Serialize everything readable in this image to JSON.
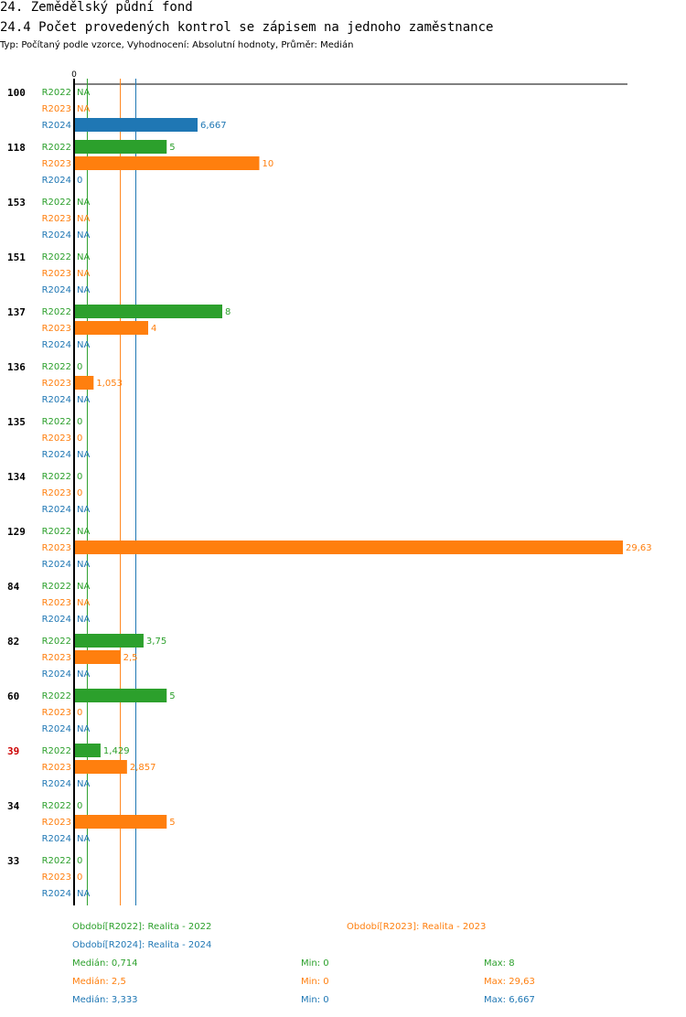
{
  "header": {
    "title": "24. Zemědělský půdní fond",
    "subtitle": "24.4 Počet provedených kontrol se zápisem na jednoho zaměstnance",
    "info": "Typ: Počítaný podle vzorce, Vyhodnocení: Absolutní hodnoty, Průměr: Medián"
  },
  "colors": {
    "R2022": "#2ca02c",
    "R2023": "#ff7f0e",
    "R2024": "#1f77b4",
    "highlight": "#cc0000"
  },
  "chart_data": {
    "type": "bar",
    "orientation": "horizontal",
    "x_tick_label": "0",
    "xlim": [
      0,
      29.63
    ],
    "na_label": "NA",
    "series": [
      {
        "name": "R2022",
        "key": "R2022"
      },
      {
        "name": "R2023",
        "key": "R2023"
      },
      {
        "name": "R2024",
        "key": "R2024"
      }
    ],
    "groups": [
      {
        "label": "100",
        "highlight": false,
        "values": {
          "R2022": null,
          "R2023": null,
          "R2024": 6.667
        },
        "value_labels": {
          "R2024": "6,667"
        }
      },
      {
        "label": "118",
        "highlight": false,
        "values": {
          "R2022": 5,
          "R2023": 10,
          "R2024": 0
        },
        "value_labels": {
          "R2022": "5",
          "R2023": "10",
          "R2024": "0"
        }
      },
      {
        "label": "153",
        "highlight": false,
        "values": {
          "R2022": null,
          "R2023": null,
          "R2024": null
        },
        "value_labels": {}
      },
      {
        "label": "151",
        "highlight": false,
        "values": {
          "R2022": null,
          "R2023": null,
          "R2024": null
        },
        "value_labels": {}
      },
      {
        "label": "137",
        "highlight": false,
        "values": {
          "R2022": 8,
          "R2023": 4,
          "R2024": null
        },
        "value_labels": {
          "R2022": "8",
          "R2023": "4"
        }
      },
      {
        "label": "136",
        "highlight": false,
        "values": {
          "R2022": 0,
          "R2023": 1.053,
          "R2024": null
        },
        "value_labels": {
          "R2022": "0",
          "R2023": "1,053"
        }
      },
      {
        "label": "135",
        "highlight": false,
        "values": {
          "R2022": 0,
          "R2023": 0,
          "R2024": null
        },
        "value_labels": {
          "R2022": "0",
          "R2023": "0"
        }
      },
      {
        "label": "134",
        "highlight": false,
        "values": {
          "R2022": 0,
          "R2023": 0,
          "R2024": null
        },
        "value_labels": {
          "R2022": "0",
          "R2023": "0"
        }
      },
      {
        "label": "129",
        "highlight": false,
        "values": {
          "R2022": null,
          "R2023": 29.63,
          "R2024": null
        },
        "value_labels": {
          "R2023": "29,63"
        }
      },
      {
        "label": "84",
        "highlight": false,
        "values": {
          "R2022": null,
          "R2023": null,
          "R2024": null
        },
        "value_labels": {}
      },
      {
        "label": "82",
        "highlight": false,
        "values": {
          "R2022": 3.75,
          "R2023": 2.5,
          "R2024": null
        },
        "value_labels": {
          "R2022": "3,75",
          "R2023": "2,5"
        }
      },
      {
        "label": "60",
        "highlight": false,
        "values": {
          "R2022": 5,
          "R2023": 0,
          "R2024": null
        },
        "value_labels": {
          "R2022": "5",
          "R2023": "0"
        }
      },
      {
        "label": "39",
        "highlight": true,
        "values": {
          "R2022": 1.429,
          "R2023": 2.857,
          "R2024": null
        },
        "value_labels": {
          "R2022": "1,429",
          "R2023": "2,857"
        }
      },
      {
        "label": "34",
        "highlight": false,
        "values": {
          "R2022": 0,
          "R2023": 5,
          "R2024": null
        },
        "value_labels": {
          "R2022": "0",
          "R2023": "5"
        }
      },
      {
        "label": "33",
        "highlight": false,
        "values": {
          "R2022": 0,
          "R2023": 0,
          "R2024": null
        },
        "value_labels": {
          "R2022": "0",
          "R2023": "0"
        }
      }
    ],
    "median_lines": {
      "R2022": 0.714,
      "R2023": 2.5,
      "R2024": 3.333
    }
  },
  "legend": {
    "periods": [
      {
        "key": "R2022",
        "text": "Období[R2022]: Realita - 2022"
      },
      {
        "key": "R2023",
        "text": "Období[R2023]: Realita - 2023"
      },
      {
        "key": "R2024",
        "text": "Období[R2024]: Realita - 2024"
      }
    ],
    "stats": [
      {
        "key": "R2022",
        "median": "Medián: 0,714",
        "min": "Min: 0",
        "max": "Max: 8"
      },
      {
        "key": "R2023",
        "median": "Medián: 2,5",
        "min": "Min: 0",
        "max": "Max: 29,63"
      },
      {
        "key": "R2024",
        "median": "Medián: 3,333",
        "min": "Min: 0",
        "max": "Max: 6,667"
      }
    ]
  }
}
